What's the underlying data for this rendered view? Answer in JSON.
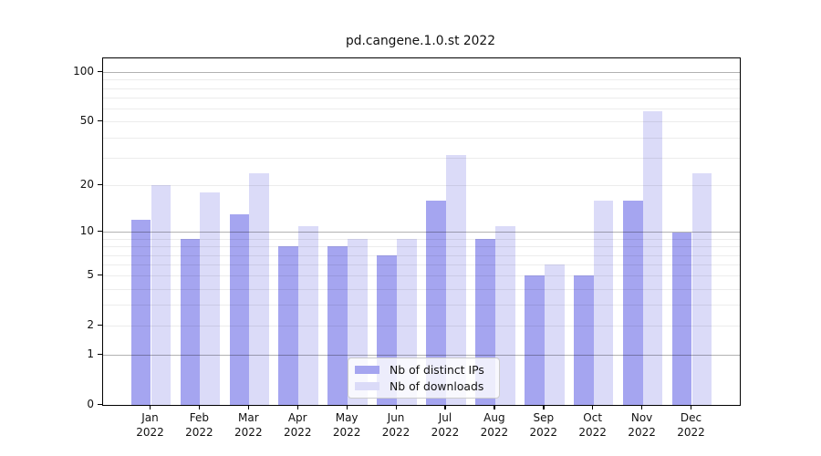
{
  "title": "pd.cangene.1.0.st 2022",
  "chart_data": {
    "type": "bar",
    "title": "pd.cangene.1.0.st 2022",
    "categories": [
      "Jan 2022",
      "Feb 2022",
      "Mar 2022",
      "Apr 2022",
      "May 2022",
      "Jun 2022",
      "Jul 2022",
      "Aug 2022",
      "Sep 2022",
      "Oct 2022",
      "Nov 2022",
      "Dec 2022"
    ],
    "series": [
      {
        "name": "Nb of distinct IPs",
        "color": "#a5a5f0",
        "values": [
          12,
          9,
          13,
          8,
          8,
          7,
          16,
          9,
          5,
          5,
          16,
          10
        ]
      },
      {
        "name": "Nb of downloads",
        "color": "#dbdbf8",
        "values": [
          20,
          18,
          24,
          11,
          9,
          9,
          31,
          11,
          6,
          16,
          58,
          24
        ]
      }
    ],
    "xlabel": "",
    "ylabel": "",
    "yscale": "log1p",
    "ylim": [
      0,
      121.5
    ],
    "y_ticks": [
      0,
      1,
      2,
      5,
      10,
      20,
      50,
      100
    ],
    "y_major_gridlines": [
      1,
      10,
      100
    ],
    "y_minor_gridlines": [
      2,
      3,
      4,
      5,
      6,
      7,
      8,
      9,
      20,
      30,
      40,
      50,
      60,
      70,
      80,
      90
    ],
    "grid": true,
    "legend_position": "lower center",
    "colors": {
      "major_gridline": "rgba(0,0,0,0.30)",
      "minor_gridline": "rgba(0,0,0,0.075)",
      "axis_frame": "#000000",
      "text": "#111111"
    }
  },
  "legend": {
    "items": [
      {
        "label": "Nb of distinct IPs"
      },
      {
        "label": "Nb of downloads"
      }
    ]
  }
}
